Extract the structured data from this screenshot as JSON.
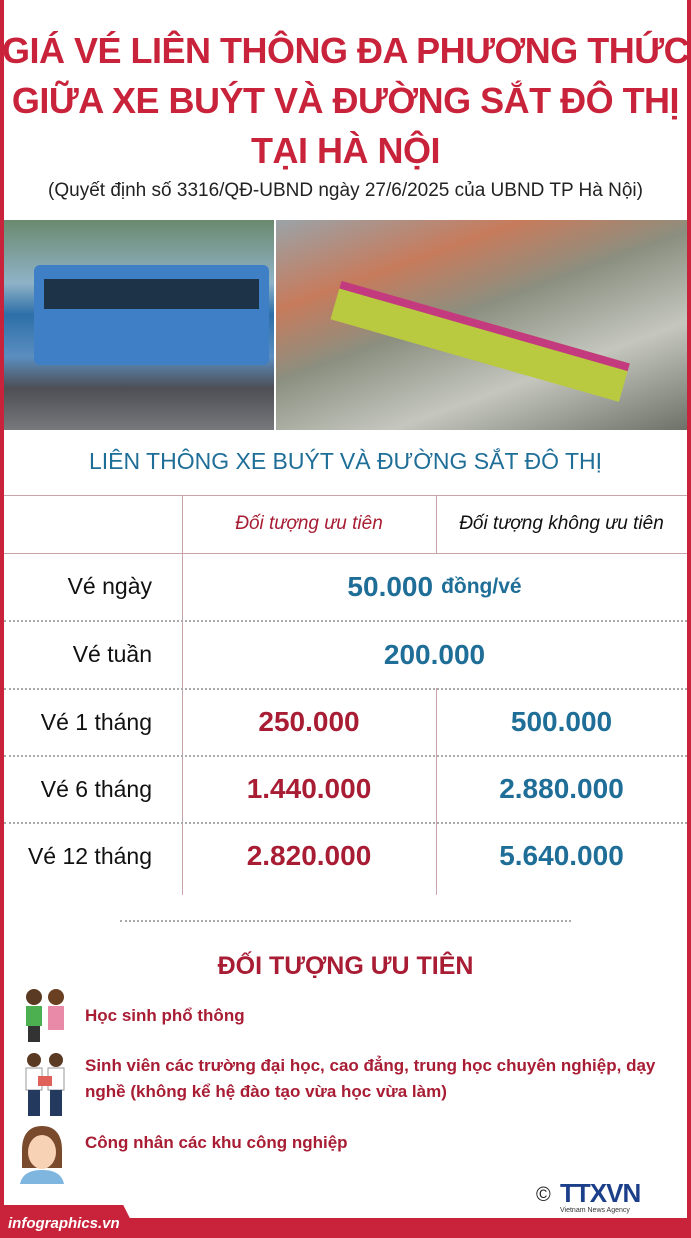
{
  "title": {
    "line1": "GIÁ VÉ LIÊN THÔNG ĐA PHƯƠNG THỨC",
    "line2": "GIỮA XE BUÝT VÀ ĐƯỜNG SẮT ĐÔ THỊ",
    "line3": "TẠI HÀ NỘI"
  },
  "subtitle": "(Quyết định số 3316/QĐ-UBND ngày 27/6/2025 của UBND TP Hà Nội)",
  "table": {
    "heading": "LIÊN THÔNG XE BUÝT VÀ ĐƯỜNG SẮT ĐÔ THỊ",
    "col_priority": "Đối tượng ưu tiên",
    "col_nonpriority": "Đối tượng không ưu tiên",
    "rows": [
      {
        "label": "Vé ngày",
        "value": "50.000",
        "unit": "đồng/vé"
      },
      {
        "label": "Vé tuần",
        "value": "200.000"
      },
      {
        "label": "Vé 1 tháng",
        "priority": "250.000",
        "nonpriority": "500.000"
      },
      {
        "label": "Vé 6 tháng",
        "priority": "1.440.000",
        "nonpriority": "2.880.000"
      },
      {
        "label": "Vé 12 tháng",
        "priority": "2.820.000",
        "nonpriority": "5.640.000"
      }
    ]
  },
  "priority": {
    "title": "ĐỐI TƯỢNG ƯU TIÊN",
    "items": [
      "Học sinh phổ thông",
      "Sinh viên các trường đại học, cao đẳng, trung học chuyên nghiệp, dạy nghề (không kể hệ đào tạo vừa học vừa làm)",
      "Công nhân các khu công nghiệp"
    ]
  },
  "footer": {
    "site": "infographics.vn",
    "copyright": "©",
    "logo": "TTXVN",
    "logo_sub": "Vietnam News Agency"
  },
  "colors": {
    "title_red": "#c8233a",
    "blue": "#1f6e98",
    "dark_red": "#a81d34"
  }
}
